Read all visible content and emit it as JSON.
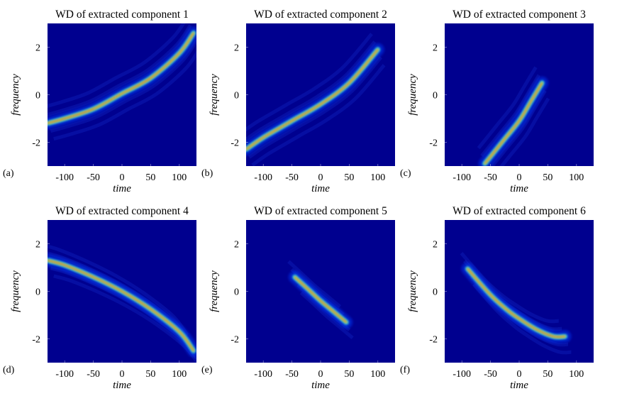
{
  "chart_data": [
    {
      "type": "heatmap",
      "panel_label": "(a)",
      "title": "WD of extracted component 1",
      "xlabel": "time",
      "ylabel": "frequency",
      "xlim": [
        -130,
        130
      ],
      "ylim": [
        -3.0,
        3.0
      ],
      "xticks": [
        -100,
        -50,
        0,
        50,
        100
      ],
      "xtick_labels": [
        "-100",
        "-50",
        "0",
        "50",
        "100"
      ],
      "yticks": [
        2,
        0,
        -2
      ],
      "ytick_labels": [
        "2",
        "0",
        "-2"
      ],
      "ridge": {
        "time": [
          -130,
          -100,
          -50,
          0,
          50,
          100,
          125
        ],
        "frequency": [
          -1.2,
          -1.0,
          -0.6,
          0.05,
          0.7,
          1.75,
          2.6
        ]
      }
    },
    {
      "type": "heatmap",
      "panel_label": "(b)",
      "title": "WD of extracted component 2",
      "xlabel": "time",
      "ylabel": "frequency",
      "xlim": [
        -130,
        130
      ],
      "ylim": [
        -3.0,
        3.0
      ],
      "xticks": [
        -100,
        -50,
        0,
        50,
        100
      ],
      "xtick_labels": [
        "-100",
        "-50",
        "0",
        "50",
        "100"
      ],
      "yticks": [
        2,
        0,
        -2
      ],
      "ytick_labels": [
        "2",
        "0",
        "-2"
      ],
      "ridge": {
        "time": [
          -130,
          -100,
          -50,
          0,
          50,
          100
        ],
        "frequency": [
          -2.3,
          -1.8,
          -1.1,
          -0.4,
          0.5,
          1.9
        ]
      }
    },
    {
      "type": "heatmap",
      "panel_label": "(c)",
      "title": "WD of extracted component 3",
      "xlabel": "time",
      "ylabel": "frequency",
      "xlim": [
        -130,
        130
      ],
      "ylim": [
        -3.0,
        3.0
      ],
      "xticks": [
        -100,
        -50,
        0,
        50,
        100
      ],
      "xtick_labels": [
        "-100",
        "-50",
        "0",
        "50",
        "100"
      ],
      "yticks": [
        2,
        0,
        -2
      ],
      "ytick_labels": [
        "2",
        "0",
        "-2"
      ],
      "ridge": {
        "time": [
          -60,
          -30,
          0,
          20,
          40
        ],
        "frequency": [
          -2.9,
          -2.0,
          -1.1,
          -0.3,
          0.5
        ]
      }
    },
    {
      "type": "heatmap",
      "panel_label": "(d)",
      "title": "WD of extracted component 4",
      "xlabel": "time",
      "ylabel": "frequency",
      "xlim": [
        -130,
        130
      ],
      "ylim": [
        -3.0,
        3.0
      ],
      "xticks": [
        -100,
        -50,
        0,
        50,
        100
      ],
      "xtick_labels": [
        "-100",
        "-50",
        "0",
        "50",
        "100"
      ],
      "yticks": [
        2,
        0,
        -2
      ],
      "ytick_labels": [
        "2",
        "0",
        "-2"
      ],
      "ridge": {
        "time": [
          -130,
          -100,
          -50,
          0,
          50,
          100,
          125
        ],
        "frequency": [
          1.3,
          1.1,
          0.6,
          0.0,
          -0.75,
          -1.7,
          -2.5
        ]
      }
    },
    {
      "type": "heatmap",
      "panel_label": "(e)",
      "title": "WD of extracted component 5",
      "xlabel": "time",
      "ylabel": "frequency",
      "xlim": [
        -130,
        130
      ],
      "ylim": [
        -3.0,
        3.0
      ],
      "xticks": [
        -100,
        -50,
        0,
        50,
        100
      ],
      "xtick_labels": [
        "-100",
        "-50",
        "0",
        "50",
        "100"
      ],
      "yticks": [
        2,
        0,
        -2
      ],
      "ytick_labels": [
        "2",
        "0",
        "-2"
      ],
      "ridge": {
        "time": [
          -45,
          -20,
          0,
          20,
          45
        ],
        "frequency": [
          0.6,
          0.05,
          -0.4,
          -0.8,
          -1.3
        ]
      }
    },
    {
      "type": "heatmap",
      "panel_label": "(f)",
      "title": "WD of extracted component 6",
      "xlabel": "time",
      "ylabel": "frequency",
      "xlim": [
        -130,
        130
      ],
      "ylim": [
        -3.0,
        3.0
      ],
      "xticks": [
        -100,
        -50,
        0,
        50,
        100
      ],
      "xtick_labels": [
        "-100",
        "-50",
        "0",
        "50",
        "100"
      ],
      "yticks": [
        2,
        0,
        -2
      ],
      "ytick_labels": [
        "2",
        "0",
        "-2"
      ],
      "ridge": {
        "time": [
          -90,
          -50,
          -20,
          0,
          30,
          60,
          80
        ],
        "frequency": [
          0.95,
          -0.15,
          -0.8,
          -1.15,
          -1.6,
          -1.9,
          -1.9
        ]
      }
    }
  ],
  "colors": {
    "background": "#00008f",
    "halo": "#0a3cff",
    "glow": "#1ec8ff",
    "mid": "#7fffaa",
    "hot": "#ffd000",
    "core": "#e81800",
    "cross_terms": "#1a40e6"
  }
}
